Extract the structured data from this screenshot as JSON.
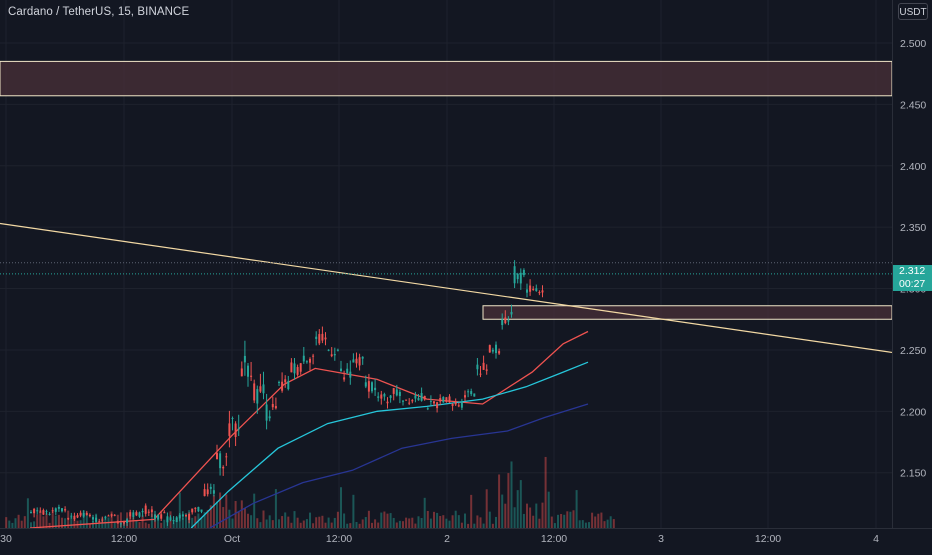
{
  "header": {
    "symbol_title": "Cardano / TetherUS, 15, BINANCE",
    "currency_button": "USDT"
  },
  "price_axis": {
    "ticks": [
      "2.500",
      "2.450",
      "2.400",
      "2.350",
      "2.300",
      "2.250",
      "2.200",
      "2.150"
    ],
    "last_price_badge": {
      "price": "2.312",
      "countdown": "00:27"
    }
  },
  "time_axis": {
    "ticks": [
      "30",
      "12:00",
      "Oct",
      "12:00",
      "2",
      "12:00",
      "3",
      "12:00",
      "4"
    ]
  },
  "colors": {
    "background": "#131722",
    "bullish": "#26a69a",
    "bearish": "#ef5350",
    "zone_fill": "#4a3038",
    "zone_border": "#f0e6c8",
    "trendline": "#f3d9a4",
    "ma_fast": "#ef5350",
    "ma_mid": "#26c6da",
    "ma_slow": "#283593"
  },
  "chart_data": {
    "type": "candlestick",
    "symbol": "Cardano / TetherUS",
    "interval": "15",
    "exchange": "BINANCE",
    "price_range": [
      2.105,
      2.535
    ],
    "last_price": 2.312,
    "horizontal_zones": [
      {
        "top": 2.485,
        "bottom": 2.457
      },
      {
        "top": 2.286,
        "bottom": 2.275,
        "starts_at_time": "2, 04:00"
      }
    ],
    "trendline": {
      "start": {
        "time": "30, 00:00",
        "price": 2.353
      },
      "end": {
        "time": "4, 00:00",
        "price": 2.248
      }
    },
    "moving_averages": [
      {
        "color": "red",
        "points": [
          [
            0,
            2.105
          ],
          [
            40,
            2.112
          ],
          [
            65,
            2.18
          ],
          [
            82,
            2.222
          ],
          [
            92,
            2.235
          ],
          [
            112,
            2.226
          ],
          [
            128,
            2.21
          ],
          [
            146,
            2.206
          ],
          [
            162,
            2.232
          ],
          [
            172,
            2.255
          ],
          [
            180,
            2.265
          ]
        ]
      },
      {
        "color": "teal",
        "points": [
          [
            52,
            2.105
          ],
          [
            64,
            2.135
          ],
          [
            80,
            2.17
          ],
          [
            96,
            2.19
          ],
          [
            112,
            2.2
          ],
          [
            128,
            2.204
          ],
          [
            146,
            2.21
          ],
          [
            160,
            2.22
          ],
          [
            172,
            2.232
          ],
          [
            180,
            2.24
          ]
        ]
      },
      {
        "color": "navy",
        "points": [
          [
            58,
            2.105
          ],
          [
            72,
            2.125
          ],
          [
            88,
            2.142
          ],
          [
            104,
            2.152
          ],
          [
            120,
            2.17
          ],
          [
            136,
            2.178
          ],
          [
            154,
            2.184
          ],
          [
            166,
            2.195
          ],
          [
            180,
            2.206
          ]
        ]
      }
    ],
    "candles_ohlc_2h_approx": [
      [
        0,
        2.124,
        2.132,
        2.115,
        2.12
      ],
      [
        4,
        2.12,
        2.126,
        2.112,
        2.118
      ],
      [
        8,
        2.118,
        2.125,
        2.112,
        2.12
      ],
      [
        12,
        2.12,
        2.124,
        2.11,
        2.114
      ],
      [
        16,
        2.114,
        2.12,
        2.108,
        2.116
      ],
      [
        20,
        2.116,
        2.122,
        2.11,
        2.112
      ],
      [
        24,
        2.112,
        2.118,
        2.106,
        2.115
      ],
      [
        28,
        2.115,
        2.12,
        2.108,
        2.11
      ],
      [
        32,
        2.11,
        2.118,
        2.105,
        2.116
      ],
      [
        36,
        2.116,
        2.13,
        2.11,
        2.12
      ],
      [
        40,
        2.12,
        2.13,
        2.112,
        2.115
      ],
      [
        44,
        2.115,
        2.125,
        2.108,
        2.112
      ],
      [
        48,
        2.112,
        2.12,
        2.106,
        2.114
      ],
      [
        52,
        2.114,
        2.125,
        2.11,
        2.12
      ],
      [
        56,
        2.12,
        2.142,
        2.118,
        2.135
      ],
      [
        60,
        2.135,
        2.168,
        2.13,
        2.16
      ],
      [
        64,
        2.16,
        2.2,
        2.14,
        2.185
      ],
      [
        68,
        2.185,
        2.245,
        2.18,
        2.238
      ],
      [
        72,
        2.238,
        2.25,
        2.2,
        2.215
      ],
      [
        76,
        2.215,
        2.235,
        2.19,
        2.2
      ],
      [
        80,
        2.2,
        2.225,
        2.185,
        2.22
      ],
      [
        84,
        2.22,
        2.245,
        2.21,
        2.235
      ],
      [
        88,
        2.235,
        2.255,
        2.22,
        2.245
      ],
      [
        92,
        2.245,
        2.265,
        2.235,
        2.258
      ],
      [
        96,
        2.258,
        2.272,
        2.24,
        2.25
      ],
      [
        100,
        2.25,
        2.265,
        2.22,
        2.228
      ],
      [
        104,
        2.228,
        2.25,
        2.22,
        2.24
      ],
      [
        108,
        2.24,
        2.25,
        2.215,
        2.222
      ],
      [
        112,
        2.222,
        2.23,
        2.205,
        2.21
      ],
      [
        116,
        2.21,
        2.225,
        2.195,
        2.215
      ],
      [
        120,
        2.215,
        2.22,
        2.202,
        2.21
      ],
      [
        124,
        2.21,
        2.222,
        2.2,
        2.212
      ],
      [
        128,
        2.212,
        2.22,
        2.198,
        2.205
      ],
      [
        132,
        2.205,
        2.215,
        2.2,
        2.21
      ],
      [
        136,
        2.21,
        2.215,
        2.195,
        2.206
      ],
      [
        140,
        2.206,
        2.22,
        2.198,
        2.215
      ],
      [
        144,
        2.215,
        2.24,
        2.21,
        2.235
      ],
      [
        148,
        2.235,
        2.258,
        2.228,
        2.25
      ],
      [
        152,
        2.25,
        2.28,
        2.245,
        2.275
      ],
      [
        156,
        2.275,
        2.318,
        2.27,
        2.31
      ],
      [
        160,
        2.31,
        2.32,
        2.295,
        2.3
      ],
      [
        164,
        2.3,
        2.308,
        2.288,
        2.298
      ],
      [
        166,
        2.298,
        2.315,
        2.295,
        2.312
      ]
    ]
  }
}
